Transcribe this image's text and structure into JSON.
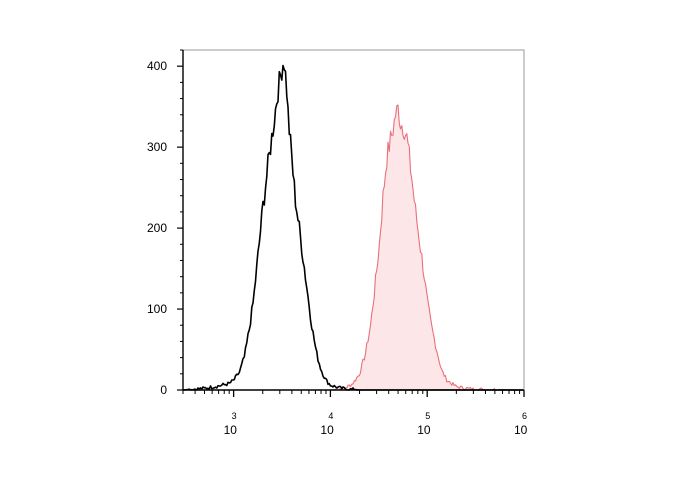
{
  "chart_data": {
    "type": "area",
    "title": "",
    "xlabel": "",
    "ylabel": "",
    "x_scale": "log",
    "xlim": [
      300,
      1000000
    ],
    "ylim": [
      0,
      420
    ],
    "grid": false,
    "legend": "none",
    "y_ticks": [
      {
        "value": 0,
        "label": "0"
      },
      {
        "value": 100,
        "label": "100"
      },
      {
        "value": 200,
        "label": "200"
      },
      {
        "value": 300,
        "label": "300"
      },
      {
        "value": 400,
        "label": "400"
      }
    ],
    "x_ticks": [
      {
        "value": 1000,
        "base": "10",
        "exp": "3"
      },
      {
        "value": 10000,
        "base": "10",
        "exp": "4"
      },
      {
        "value": 100000,
        "base": "10",
        "exp": "5"
      },
      {
        "value": 1000000,
        "base": "10",
        "exp": "6"
      }
    ],
    "series": [
      {
        "color": "#000000",
        "fill": "none",
        "points": [
          [
            300,
            0
          ],
          [
            500,
            2
          ],
          [
            700,
            5
          ],
          [
            900,
            8
          ],
          [
            1000,
            12
          ],
          [
            1150,
            22
          ],
          [
            1300,
            42
          ],
          [
            1450,
            75
          ],
          [
            1600,
            110
          ],
          [
            1800,
            170
          ],
          [
            2000,
            225
          ],
          [
            2200,
            265
          ],
          [
            2400,
            300
          ],
          [
            2600,
            330
          ],
          [
            2800,
            360
          ],
          [
            3000,
            385
          ],
          [
            3200,
            400
          ],
          [
            3300,
            410
          ],
          [
            3500,
            380
          ],
          [
            3700,
            330
          ],
          [
            4000,
            285
          ],
          [
            4300,
            240
          ],
          [
            4700,
            205
          ],
          [
            5200,
            165
          ],
          [
            5800,
            120
          ],
          [
            6500,
            75
          ],
          [
            7200,
            45
          ],
          [
            8000,
            25
          ],
          [
            9000,
            12
          ],
          [
            10000,
            6
          ],
          [
            12000,
            3
          ],
          [
            15000,
            1
          ],
          [
            20000,
            0
          ],
          [
            100000,
            0
          ],
          [
            1000000,
            0
          ]
        ]
      },
      {
        "color": "#e8707a",
        "fill": "#fde6e8",
        "points": [
          [
            300,
            0
          ],
          [
            10000,
            0
          ],
          [
            14000,
            2
          ],
          [
            17000,
            8
          ],
          [
            20000,
            20
          ],
          [
            23000,
            45
          ],
          [
            26000,
            80
          ],
          [
            29000,
            130
          ],
          [
            32000,
            180
          ],
          [
            35000,
            240
          ],
          [
            38000,
            285
          ],
          [
            41000,
            305
          ],
          [
            44000,
            320
          ],
          [
            47000,
            340
          ],
          [
            50000,
            348
          ],
          [
            53000,
            330
          ],
          [
            57000,
            325
          ],
          [
            62000,
            310
          ],
          [
            68000,
            270
          ],
          [
            75000,
            225
          ],
          [
            82000,
            190
          ],
          [
            90000,
            155
          ],
          [
            100000,
            110
          ],
          [
            110000,
            80
          ],
          [
            125000,
            50
          ],
          [
            140000,
            25
          ],
          [
            160000,
            12
          ],
          [
            200000,
            4
          ],
          [
            300000,
            1
          ],
          [
            1000000,
            0
          ]
        ]
      }
    ]
  }
}
